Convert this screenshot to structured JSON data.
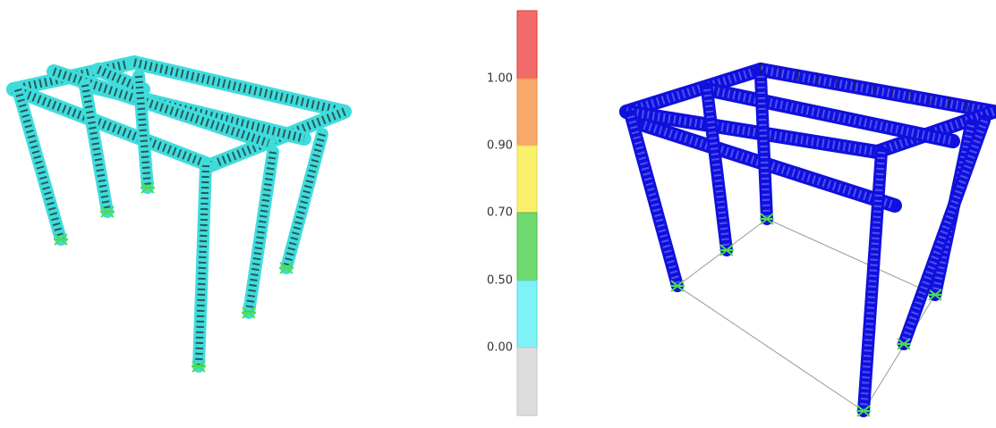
{
  "legend": {
    "ticks": [
      "1.00",
      "0.90",
      "0.70",
      "0.50",
      "0.00"
    ]
  }
}
